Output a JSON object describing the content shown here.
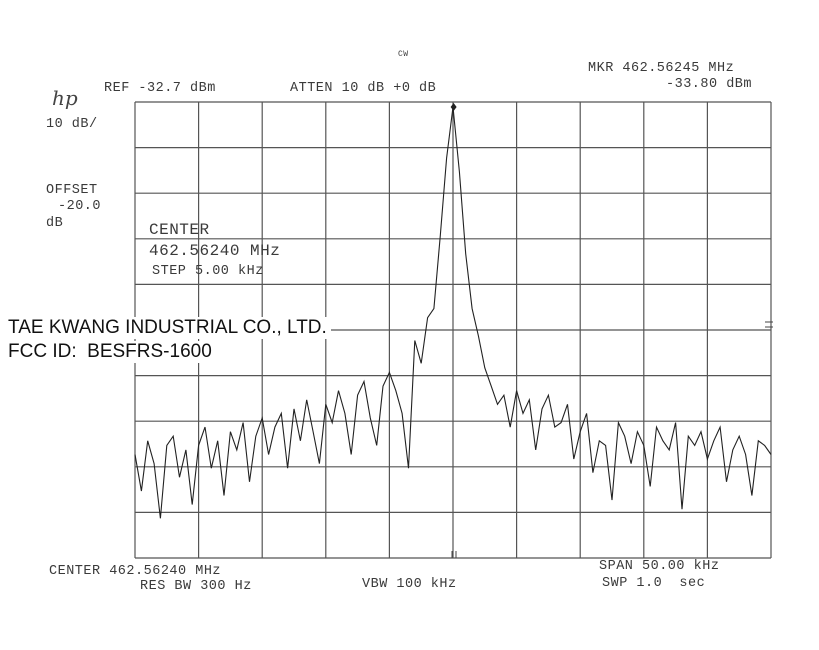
{
  "header": {
    "mode": "CW",
    "logo": "hp",
    "ref": "REF -32.7 dBm",
    "atten": "ATTEN 10 dB +0 dB",
    "marker_freq": "MKR 462.56245 MHz",
    "marker_level": "-33.80 dBm",
    "scale": "10 dB/",
    "offset_label": "OFFSET",
    "offset_value": "-20.0",
    "offset_unit": "dB"
  },
  "overlay": {
    "center_label": "CENTER",
    "center_value": "462.56240 MHz",
    "step": "STEP 5.00 kHz"
  },
  "company": {
    "name": "TAE KWANG INDUSTRIAL CO., LTD.",
    "fcc_id": "FCC ID:  BESFRS-1600"
  },
  "footer": {
    "center": "CENTER 462.56240 MHz",
    "span": "SPAN 50.00 kHz",
    "res_bw": "RES BW 300 Hz",
    "vbw": "VBW 100 kHz",
    "sweep": "SWP 1.0  sec"
  },
  "chart_data": {
    "type": "line",
    "x_unit": "MHz",
    "y_unit": "dBm",
    "xlim": [
      462.5374,
      462.5874
    ],
    "ylim": [
      -132.7,
      -32.7
    ],
    "x_divisions": 10,
    "y_divisions": 10,
    "grid": true,
    "marker": {
      "x": 462.56245,
      "y": -33.8
    },
    "trace_color": "#222222",
    "series": [
      {
        "values": [
          -110,
          -118,
          -107,
          -112,
          -124,
          -108,
          -106,
          -115,
          -109,
          -121,
          -108,
          -104,
          -113,
          -107,
          -119,
          -105,
          -109,
          -103,
          -116,
          -106,
          -102,
          -110,
          -104,
          -101,
          -113,
          -100,
          -107,
          -98,
          -105,
          -112,
          -99,
          -103,
          -96,
          -101,
          -110,
          -97,
          -94,
          -102,
          -108,
          -95,
          -92,
          -96,
          -101,
          -113,
          -85,
          -90,
          -80,
          -78,
          -62,
          -45,
          -33.8,
          -48,
          -66,
          -78,
          -84,
          -91,
          -95,
          -99,
          -97,
          -104,
          -96,
          -101,
          -98,
          -109,
          -100,
          -97,
          -104,
          -103,
          -99,
          -111,
          -105,
          -101,
          -114,
          -107,
          -108,
          -120,
          -103,
          -106,
          -112,
          -105,
          -108,
          -117,
          -104,
          -107,
          -109,
          -103,
          -122,
          -106,
          -108,
          -105,
          -111,
          -107,
          -104,
          -116,
          -109,
          -106,
          -110,
          -119,
          -107,
          -108,
          -110
        ]
      }
    ]
  }
}
